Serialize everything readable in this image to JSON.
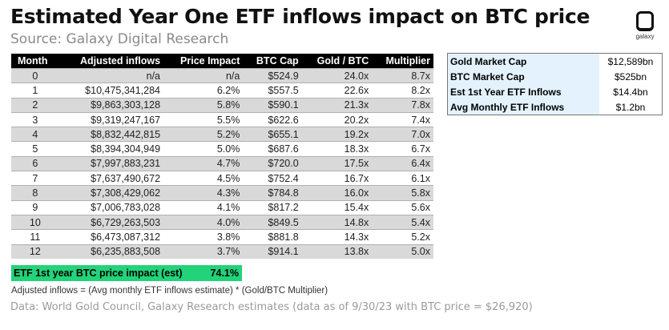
{
  "title": "Estimated Year One ETF inflows impact on BTC price",
  "subtitle": "Source: Galaxy Digital Research",
  "logo": "galaxy",
  "columns": [
    "Month",
    "Adjusted inflows",
    "Price Impact",
    "BTC Cap",
    "Gold / BTC",
    "Multiplier"
  ],
  "rows": [
    [
      "0",
      "n/a",
      "n/a",
      "$524.9",
      "24.0x",
      "8.7x"
    ],
    [
      "1",
      "$10,475,341,284",
      "6.2%",
      "$557.5",
      "22.6x",
      "8.2x"
    ],
    [
      "2",
      "$9,863,303,128",
      "5.8%",
      "$590.1",
      "21.3x",
      "7.8x"
    ],
    [
      "3",
      "$9,319,247,167",
      "5.5%",
      "$622.6",
      "20.2x",
      "7.4x"
    ],
    [
      "4",
      "$8,832,442,815",
      "5.2%",
      "$655.1",
      "19.2x",
      "7.0x"
    ],
    [
      "5",
      "$8,394,304,949",
      "5.0%",
      "$687.6",
      "18.3x",
      "6.7x"
    ],
    [
      "6",
      "$7,997,883,231",
      "4.7%",
      "$720.0",
      "17.5x",
      "6.4x"
    ],
    [
      "7",
      "$7,637,490,672",
      "4.5%",
      "$752.4",
      "16.7x",
      "6.1x"
    ],
    [
      "8",
      "$7,308,429,062",
      "4.3%",
      "$784.8",
      "16.0x",
      "5.8x"
    ],
    [
      "9",
      "$7,006,783,028",
      "4.1%",
      "$817.2",
      "15.4x",
      "5.6x"
    ],
    [
      "10",
      "$6,729,263,503",
      "4.0%",
      "$849.5",
      "14.8x",
      "5.4x"
    ],
    [
      "11",
      "$6,473,087,312",
      "3.8%",
      "$881.8",
      "14.3x",
      "5.2x"
    ],
    [
      "12",
      "$6,235,883,508",
      "3.7%",
      "$914.1",
      "13.8x",
      "5.0x"
    ]
  ],
  "total": {
    "label": "ETF 1st year BTC price impact (est)",
    "value": "74.1%"
  },
  "side": [
    {
      "k": "Gold Market Cap",
      "v": "$12,589bn"
    },
    {
      "k": "BTC Market Cap",
      "v": "$525bn"
    },
    {
      "k": "Est 1st Year ETF Inflows",
      "v": "$14.4bn"
    },
    {
      "k": "Avg Monthly ETF Inflows",
      "v": "$1.2bn"
    }
  ],
  "note": "Adjusted inflows = (Avg monthly ETF inflows estimate) * (Gold/BTC Multiplier)",
  "source": "Data: World Gold Council, Galaxy Research estimates (data as of 9/30/23 with BTC price = $26,920)"
}
